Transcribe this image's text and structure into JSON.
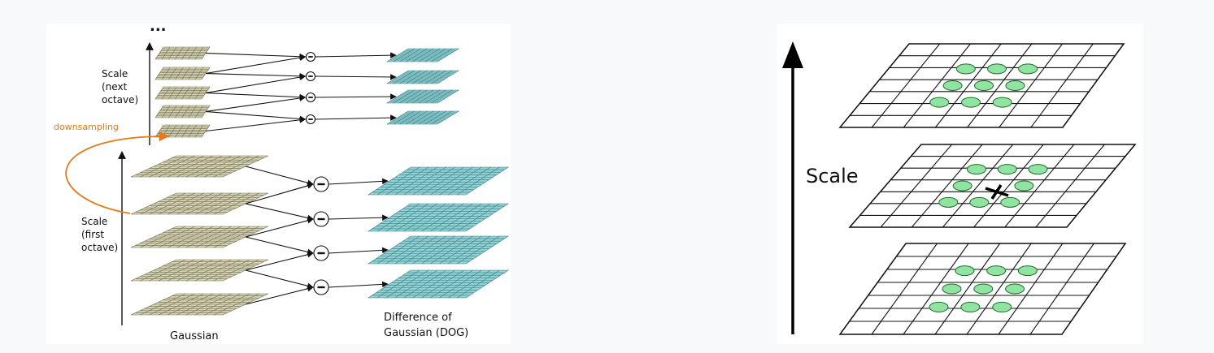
{
  "dog_pyramid": {
    "ellipsis": "...",
    "scale_next_octave": [
      "Scale",
      "(next",
      "octave)"
    ],
    "downsampling": "downsampling",
    "scale_first_octave": [
      "Scale",
      "(first",
      "octave)"
    ],
    "gaussian": "Gaussian",
    "dog_line1": "Difference of",
    "dog_line2": "Gaussian (DOG)",
    "minus_symbol": "−",
    "colors": {
      "gaussian_fill": "#d8d4b4",
      "gaussian_grid": "#6b6a52",
      "dog_fill": "#8fd3d6",
      "dog_grid": "#3f7b80",
      "downsampling": "#e07b1e"
    }
  },
  "scale_space": {
    "scale_label": "Scale",
    "colors": {
      "neighbor": "#90e3a0",
      "grid": "#111111"
    }
  }
}
